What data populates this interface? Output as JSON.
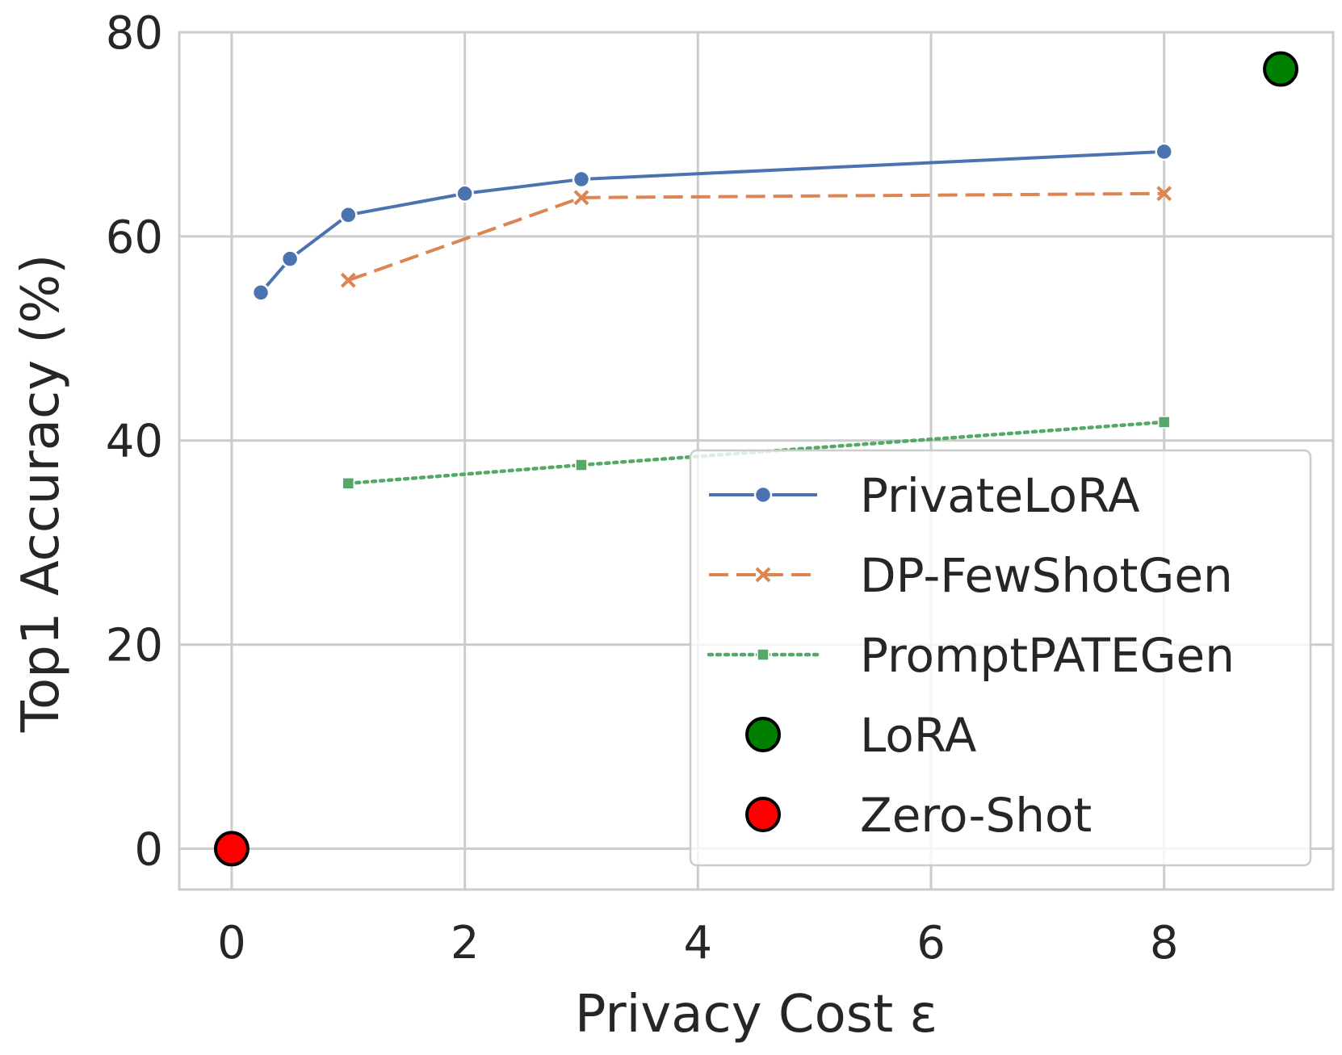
{
  "chart_data": {
    "type": "line",
    "title": "",
    "xlabel": "Privacy Cost ε",
    "ylabel": "Top1 Accuracy (%)",
    "xlim": [
      -0.45,
      9.45
    ],
    "ylim": [
      -4,
      80
    ],
    "xticks": [
      0,
      2,
      4,
      6,
      8
    ],
    "yticks": [
      0,
      20,
      40,
      60,
      80
    ],
    "grid": true,
    "legend_position": "lower-right",
    "series": [
      {
        "name": "PrivateLoRA",
        "style": "solid",
        "marker": "circle",
        "color": "#4c72b0",
        "x": [
          0.25,
          0.5,
          1,
          2,
          3,
          8
        ],
        "y": [
          54.5,
          57.8,
          62.1,
          64.2,
          65.6,
          68.3
        ]
      },
      {
        "name": "DP-FewShotGen",
        "style": "dashed",
        "marker": "x",
        "color": "#dd8452",
        "x": [
          1,
          3,
          8
        ],
        "y": [
          55.7,
          63.8,
          64.2
        ]
      },
      {
        "name": "PromptPATEGen",
        "style": "dotted",
        "marker": "square",
        "color": "#55a868",
        "x": [
          1,
          3,
          8
        ],
        "y": [
          35.8,
          37.6,
          41.8
        ]
      },
      {
        "name": "LoRA",
        "style": "point",
        "marker": "big-circle",
        "color": "#008000",
        "x": [
          9
        ],
        "y": [
          76.4
        ]
      },
      {
        "name": "Zero-Shot",
        "style": "point",
        "marker": "big-circle",
        "color": "#ff0000",
        "x": [
          0
        ],
        "y": [
          0
        ]
      }
    ]
  }
}
